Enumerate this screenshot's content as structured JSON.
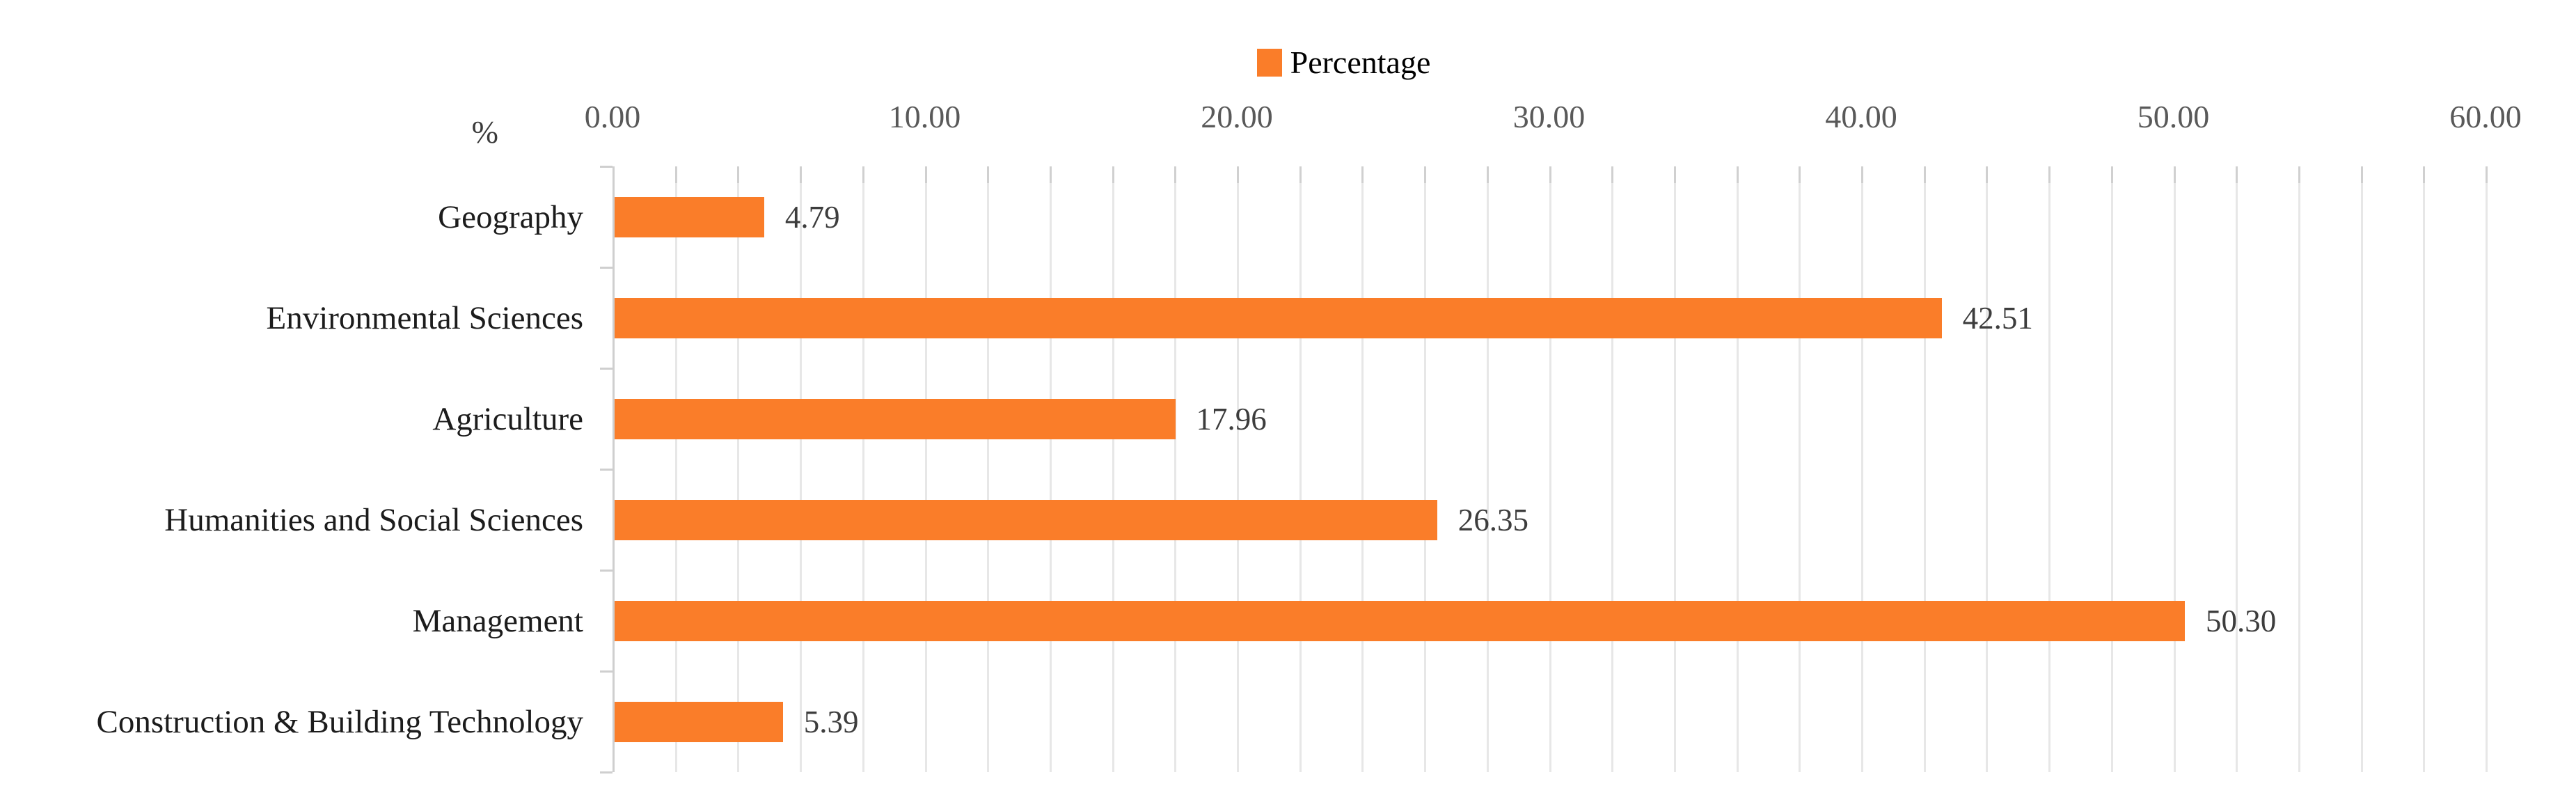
{
  "chart_data": {
    "type": "bar",
    "orientation": "horizontal",
    "legend": {
      "label": "Percentage",
      "position": "top-center"
    },
    "axis_unit_label": "%",
    "categories": [
      "Geography",
      "Environmental Sciences",
      "Agriculture",
      "Humanities and Social Sciences",
      "Management",
      "Construction & Building Technology"
    ],
    "values": [
      4.79,
      42.51,
      17.96,
      26.35,
      50.3,
      5.39
    ],
    "data_labels": [
      "4.79",
      "42.51",
      "17.96",
      "26.35",
      "50.30",
      "5.39"
    ],
    "xlabel": "",
    "ylabel": "",
    "xlim": [
      0,
      60
    ],
    "x_ticks": [
      "0.00",
      "10.00",
      "20.00",
      "30.00",
      "40.00",
      "50.00",
      "60.00"
    ],
    "x_tick_values": [
      0,
      10,
      20,
      30,
      40,
      50,
      60
    ],
    "minor_gridline_step": 2,
    "grid": true,
    "value_axis_position": "top",
    "colors": {
      "bar": "#FA7D29",
      "gridline": "#E7E7E7",
      "gridline_tick": "#D0D0D0",
      "axis": "#CFCFCF",
      "tick_label": "#595959",
      "unit_label": "#3a3a3a",
      "category_label": "#1c1c1c",
      "data_label": "#3d3d3d",
      "legend_text": "#000000",
      "background": "#FFFFFF"
    }
  }
}
